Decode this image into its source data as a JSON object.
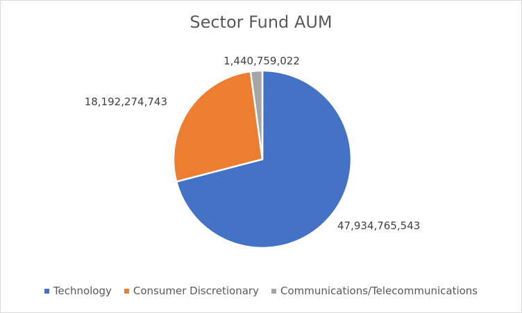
{
  "chart_data": {
    "type": "pie",
    "title": "Sector Fund AUM",
    "categories": [
      "Technology",
      "Consumer Discretionary",
      "Communications/Telecommunications"
    ],
    "values": [
      47934765543,
      18192274743,
      1440759022
    ],
    "data_labels": [
      "47,934,765,543",
      "18,192,274,743",
      "1,440,759,022"
    ],
    "colors": [
      "#4472C4",
      "#ED7D31",
      "#A5A5A5"
    ],
    "legend_position": "bottom",
    "start_angle_deg": 0,
    "direction": "clockwise"
  }
}
